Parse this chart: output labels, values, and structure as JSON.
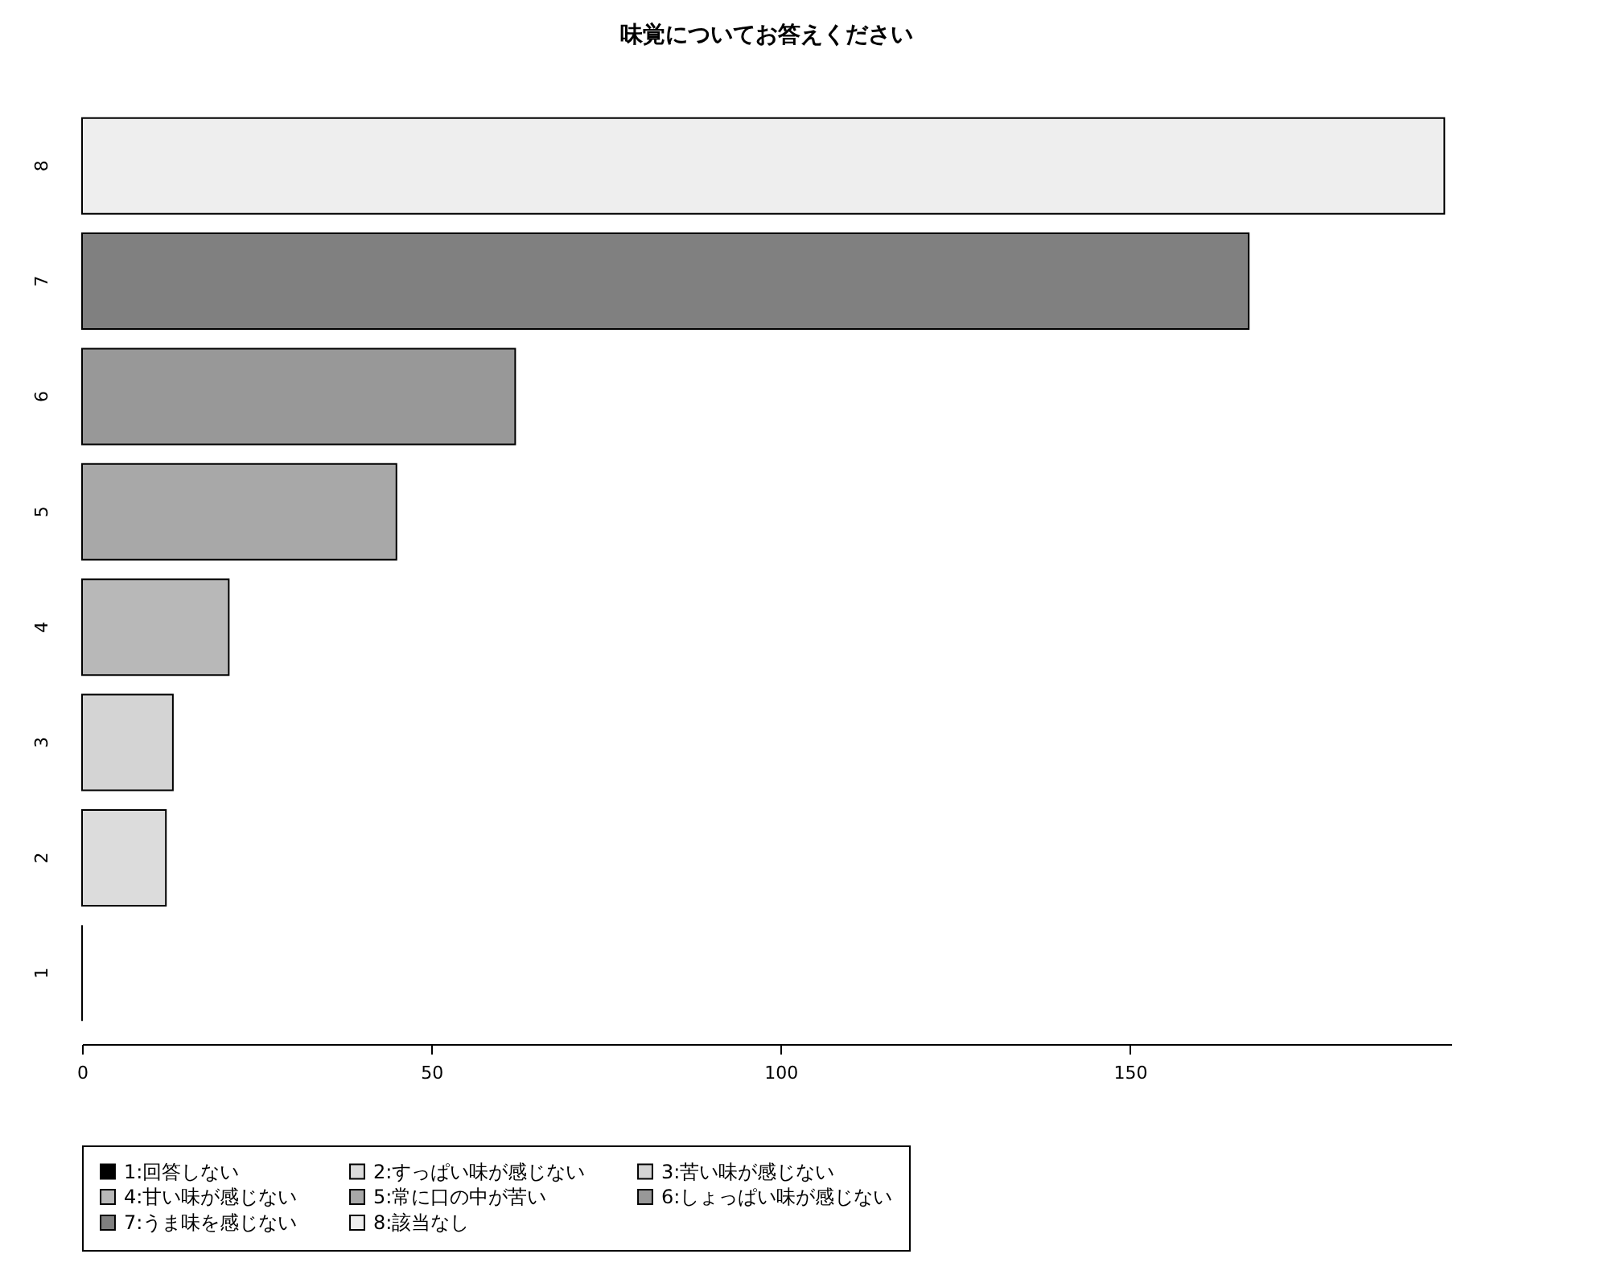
{
  "chart_data": {
    "type": "bar",
    "orientation": "horizontal",
    "title": "味覚についてお答えください",
    "categories": [
      "8",
      "7",
      "6",
      "5",
      "4",
      "3",
      "2",
      "1"
    ],
    "series": [
      {
        "name": "1:回答しない",
        "color": "#000000",
        "values": [
          null,
          null,
          null,
          null,
          null,
          null,
          null,
          0
        ]
      },
      {
        "name": "2:すっぱい味が感じない",
        "color": "#dcdcdc",
        "values": [
          null,
          null,
          null,
          null,
          null,
          null,
          12,
          null
        ]
      },
      {
        "name": "3:苦い味が感じない",
        "color": "#d4d4d4",
        "values": [
          null,
          null,
          null,
          null,
          null,
          13,
          null,
          null
        ]
      },
      {
        "name": "4:甘い味が感じない",
        "color": "#b8b8b8",
        "values": [
          null,
          null,
          null,
          null,
          21,
          null,
          null,
          null
        ]
      },
      {
        "name": "5:常に口の中が苦い",
        "color": "#a8a8a8",
        "values": [
          null,
          null,
          null,
          45,
          null,
          null,
          null,
          null
        ]
      },
      {
        "name": "6:しょっぱい味が感じない",
        "color": "#989898",
        "values": [
          null,
          null,
          62,
          null,
          null,
          null,
          null,
          null
        ]
      },
      {
        "name": "7:うま味を感じない",
        "color": "#808080",
        "values": [
          null,
          167,
          null,
          null,
          null,
          null,
          null,
          null
        ]
      },
      {
        "name": "8:該当なし",
        "color": "#eeeeee",
        "values": [
          195,
          null,
          null,
          null,
          null,
          null,
          null,
          null
        ]
      }
    ],
    "xlim": [
      0,
      196
    ],
    "xticks": [
      0,
      50,
      100,
      150
    ],
    "legend": "bottom"
  }
}
